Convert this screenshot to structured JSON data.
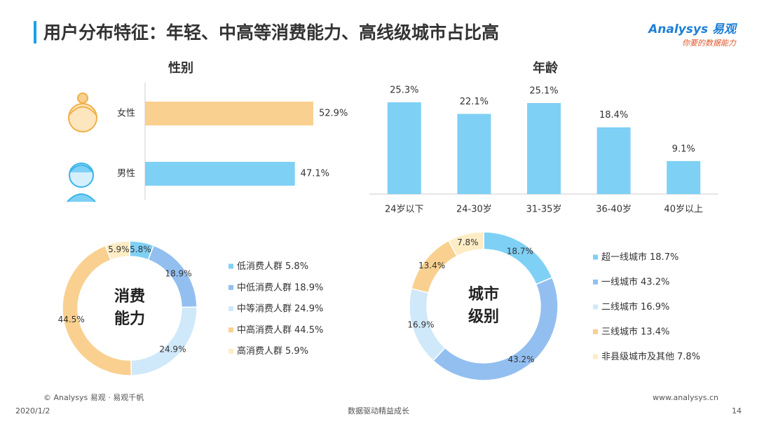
{
  "header": {
    "title": "用户分布特征：年轻、中高等消费能力、高线级城市占比高",
    "logo": "Analysys 易观",
    "slogan": "你要的数据能力"
  },
  "chart_data": [
    {
      "type": "hbar",
      "title": "性别",
      "categories": [
        "女性",
        "男性"
      ],
      "values": [
        52.9,
        47.1
      ],
      "value_labels": [
        "52.9%",
        "47.1%"
      ],
      "colors": [
        "#f9d08f",
        "#7fd0f5"
      ]
    },
    {
      "type": "bar",
      "title": "年龄",
      "categories": [
        "24岁以下",
        "24-30岁",
        "31-35岁",
        "36-40岁",
        "40岁以上"
      ],
      "values": [
        25.3,
        22.1,
        25.1,
        18.4,
        9.1
      ],
      "value_labels": [
        "25.3%",
        "22.1%",
        "25.1%",
        "18.4%",
        "9.1%"
      ],
      "color": "#7fd0f5"
    },
    {
      "type": "pie",
      "donut": true,
      "center_label": [
        "消费",
        "能力"
      ],
      "categories": [
        "低消费人群",
        "中低消费人群",
        "中等消费人群",
        "中高消费人群",
        "高消费人群"
      ],
      "values": [
        5.8,
        18.9,
        24.9,
        44.5,
        5.9
      ],
      "value_labels": [
        "5.8%",
        "18.9%",
        "24.9%",
        "44.5%",
        "5.9%"
      ],
      "colors": [
        "#7fd0f5",
        "#93bff0",
        "#cfe8fa",
        "#f9d08f",
        "#fdecc4"
      ]
    },
    {
      "type": "pie",
      "donut": true,
      "center_label": [
        "城市",
        "级别"
      ],
      "categories": [
        "超一线城市",
        "一线城市",
        "二线城市",
        "三线城市",
        "非县级城市及其他"
      ],
      "values": [
        18.7,
        43.2,
        16.9,
        13.4,
        7.8
      ],
      "value_labels": [
        "18.7%",
        "43.2%",
        "16.9%",
        "13.4%",
        "7.8%"
      ],
      "colors": [
        "#7fd0f5",
        "#93bff0",
        "#cfe8fa",
        "#f9d08f",
        "#fdecc4"
      ]
    }
  ],
  "footer": {
    "copyright": "© Analysys 易观 · 易观千帆",
    "date": "2020/1/2",
    "tagline": "数据驱动精益成长",
    "url": "www.analysys.cn",
    "page": "14"
  }
}
